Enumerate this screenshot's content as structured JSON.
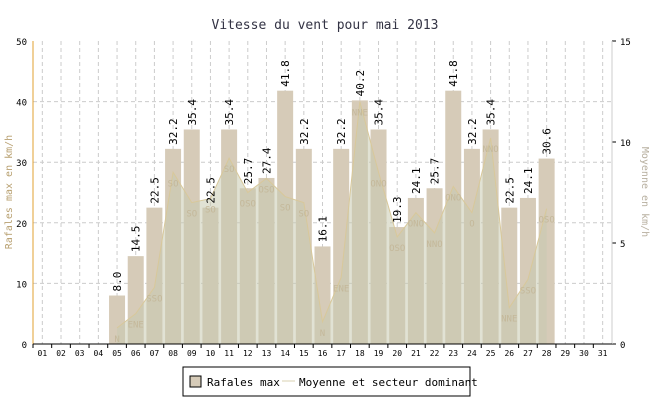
{
  "chart_data": {
    "type": "bar",
    "title": "Vitesse du vent pour mai 2013",
    "ylabel": "Rafales max en km/h",
    "y2label": "Moyenne en km/h",
    "ylim": [
      0,
      50
    ],
    "y2lim": [
      0,
      15
    ],
    "yticks": [
      "0",
      "10",
      "20",
      "30",
      "40",
      "50"
    ],
    "y2ticks": [
      "0",
      "5",
      "10",
      "15"
    ],
    "categories": [
      "01",
      "02",
      "03",
      "04",
      "05",
      "06",
      "07",
      "08",
      "09",
      "10",
      "11",
      "12",
      "13",
      "14",
      "15",
      "16",
      "17",
      "18",
      "19",
      "20",
      "21",
      "22",
      "23",
      "24",
      "25",
      "26",
      "27",
      "28",
      "29",
      "30",
      "31"
    ],
    "series": [
      {
        "name": "Rafales max",
        "type": "bar",
        "color": "#d6cbb8",
        "values": [
          null,
          null,
          null,
          null,
          8.0,
          14.5,
          22.5,
          32.2,
          35.4,
          22.5,
          35.4,
          25.7,
          27.4,
          41.8,
          32.2,
          16.1,
          32.2,
          40.2,
          35.4,
          19.3,
          24.1,
          25.7,
          41.8,
          32.2,
          35.4,
          22.5,
          24.1,
          30.6,
          null,
          null,
          null
        ],
        "labels": [
          "",
          "",
          "",
          "",
          "8.0",
          "14.5",
          "22.5",
          "32.2",
          "35.4",
          "22.5",
          "35.4",
          "25.7",
          "27.4",
          "41.8",
          "32.2",
          "16.1",
          "32.2",
          "40.2",
          "35.4",
          "19.3",
          "24.1",
          "25.7",
          "41.8",
          "32.2",
          "35.4",
          "22.5",
          "24.1",
          "30.6",
          "",
          "",
          ""
        ]
      },
      {
        "name": "Moyenne et secteur dominant",
        "type": "area",
        "color": "#c8cbb0",
        "values": [
          null,
          null,
          null,
          null,
          0.8,
          1.5,
          2.8,
          8.5,
          7.0,
          7.2,
          9.2,
          7.5,
          8.2,
          7.3,
          7.0,
          1.1,
          3.3,
          12.0,
          8.5,
          5.3,
          6.5,
          5.5,
          7.8,
          6.5,
          10.2,
          1.8,
          3.2,
          6.7,
          null,
          null,
          null
        ],
        "sectors": [
          "",
          "",
          "",
          "",
          "N",
          "ENE",
          "SSO",
          "SO",
          "SO",
          "SO",
          "SO",
          "OSO",
          "OSO",
          "SO",
          "SO",
          "N",
          "ENE",
          "NNE",
          "ONO",
          "OSO",
          "ONO",
          "NNO",
          "ONO",
          "O",
          "NNO",
          "NNE",
          "SSO",
          "OSO",
          "",
          "",
          ""
        ]
      }
    ],
    "grid": true,
    "legend": "bottom"
  }
}
